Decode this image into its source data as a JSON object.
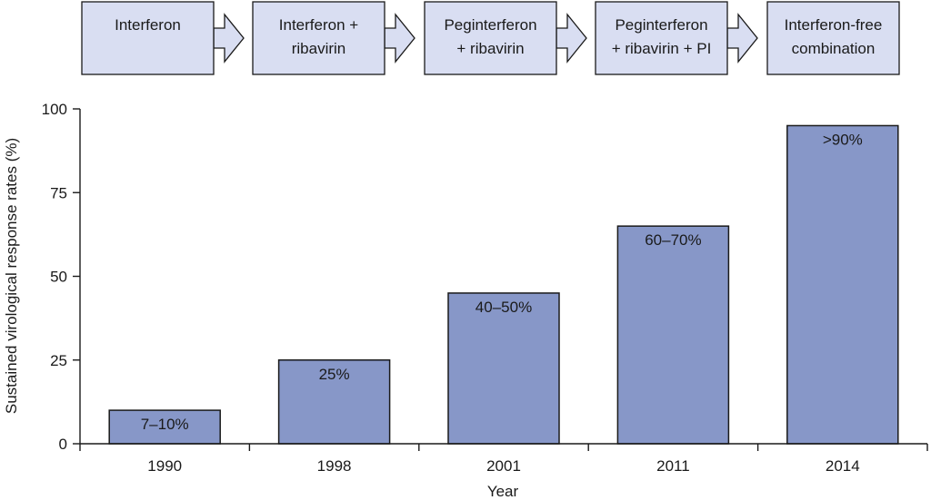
{
  "stages": [
    {
      "lines": [
        "Interferon"
      ]
    },
    {
      "lines": [
        "Interferon +",
        "ribavirin"
      ]
    },
    {
      "lines": [
        "Peginterferon",
        "+ ribavirin"
      ]
    },
    {
      "lines": [
        "Peginterferon",
        "+ ribavirin + PI"
      ]
    },
    {
      "lines": [
        "Interferon-free",
        "combination"
      ]
    }
  ],
  "colors": {
    "bar_fill": "#8797c8",
    "stage_fill": "#d9def2",
    "outline": "#1a1a1a"
  },
  "chart_data": {
    "type": "bar",
    "categories": [
      "1990",
      "1998",
      "2001",
      "2011",
      "2014"
    ],
    "values": [
      10,
      25,
      45,
      65,
      95
    ],
    "data_labels": [
      "7–10%",
      "25%",
      "40–50%",
      "60–70%",
      ">90%"
    ],
    "title": "",
    "xlabel": "Year",
    "ylabel": "Sustained virological response rates (%)",
    "ylim": [
      0,
      100
    ],
    "yticks": [
      0,
      25,
      50,
      75,
      100
    ],
    "grid": false,
    "legend": "none"
  }
}
